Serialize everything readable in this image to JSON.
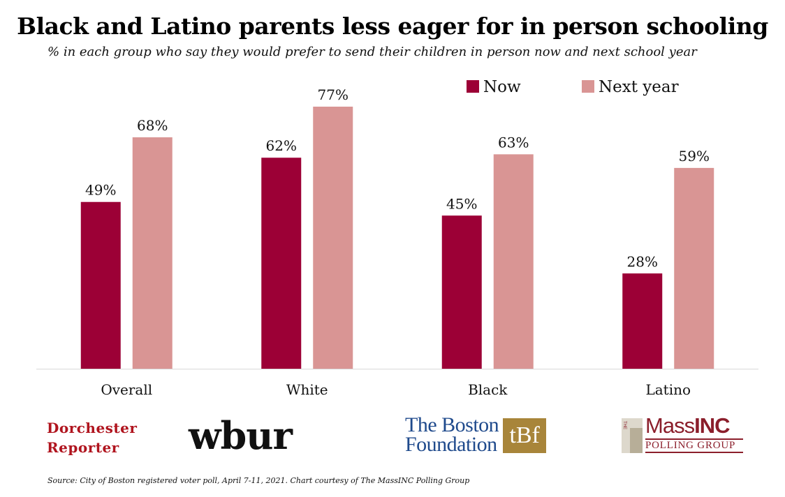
{
  "chart_data": {
    "type": "bar",
    "title": "Black and Latino parents less eager for in person schooling",
    "subtitle": "% in each group who say they would prefer to send their children in person now and next school year",
    "categories": [
      "Overall",
      "White",
      "Black",
      "Latino"
    ],
    "series": [
      {
        "name": "Now",
        "values": [
          49,
          62,
          45,
          28
        ],
        "labels": [
          "49%",
          "62%",
          "45%",
          "28%"
        ],
        "color": "#9c0036"
      },
      {
        "name": "Next year",
        "values": [
          68,
          77,
          63,
          59
        ],
        "labels": [
          "68%",
          "77%",
          "63%",
          "59%"
        ],
        "color": "#d99594"
      }
    ],
    "ylim": [
      0,
      77
    ],
    "grid": false,
    "legend_position": "top-right",
    "axis_color": "#d9d9d9"
  },
  "logos": {
    "dorchester_line1": "Dorchester",
    "dorchester_line2": "Reporter",
    "wbur": "wbur",
    "boston_line1": "The Boston",
    "boston_line2": "Foundation",
    "boston_mark": "tBf",
    "massinc_the": "THE",
    "massinc_mass": "Mass",
    "massinc_inc": "INC",
    "massinc_sub": "POLLING GROUP"
  },
  "source": "Source: City of Boston registered voter poll, April 7-11, 2021. Chart courtesy of The MassINC Polling Group"
}
